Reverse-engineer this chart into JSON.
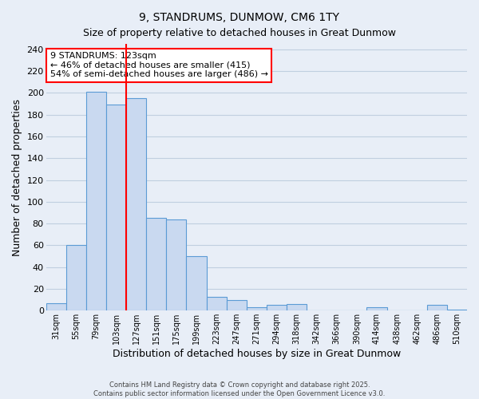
{
  "title": "9, STANDRUMS, DUNMOW, CM6 1TY",
  "subtitle": "Size of property relative to detached houses in Great Dunmow",
  "xlabel": "Distribution of detached houses by size in Great Dunmow",
  "ylabel": "Number of detached properties",
  "bar_labels": [
    "31sqm",
    "55sqm",
    "79sqm",
    "103sqm",
    "127sqm",
    "151sqm",
    "175sqm",
    "199sqm",
    "223sqm",
    "247sqm",
    "271sqm",
    "294sqm",
    "318sqm",
    "342sqm",
    "366sqm",
    "390sqm",
    "414sqm",
    "438sqm",
    "462sqm",
    "486sqm",
    "510sqm"
  ],
  "bar_values": [
    7,
    60,
    201,
    189,
    195,
    85,
    84,
    50,
    13,
    10,
    3,
    5,
    6,
    0,
    0,
    0,
    3,
    0,
    0,
    5,
    1
  ],
  "bar_color": "#c9d9f0",
  "bar_edge_color": "#5b9bd5",
  "vline_color": "red",
  "annotation_title": "9 STANDRUMS: 123sqm",
  "annotation_line1": "← 46% of detached houses are smaller (415)",
  "annotation_line2": "54% of semi-detached houses are larger (486) →",
  "annotation_box_color": "white",
  "annotation_box_edge": "red",
  "ylim": [
    0,
    245
  ],
  "yticks": [
    0,
    20,
    40,
    60,
    80,
    100,
    120,
    140,
    160,
    180,
    200,
    220,
    240
  ],
  "grid_color": "#c0cfe0",
  "bg_color": "#e8eef7",
  "footer1": "Contains HM Land Registry data © Crown copyright and database right 2025.",
  "footer2": "Contains public sector information licensed under the Open Government Licence v3.0."
}
